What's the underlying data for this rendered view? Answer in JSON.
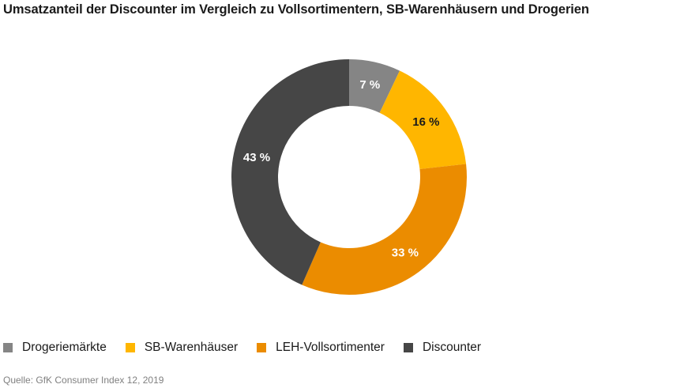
{
  "chart_data": {
    "type": "pie",
    "subtype": "donut",
    "title": "Umsatzanteil der Discounter im Vergleich zu Vollsortimentern, SB-Warenhäusern und Drogerien",
    "categories": [
      "Drogeriemärkte",
      "SB-Warenhäuser",
      "LEH-Vollsortimenter",
      "Discounter"
    ],
    "values": [
      7,
      16,
      33,
      43
    ],
    "value_labels": [
      "7 %",
      "16 %",
      "33 %",
      "43 %"
    ],
    "unit": "%",
    "colors": [
      "#858585",
      "#FFB600",
      "#EB8C00",
      "#464646"
    ],
    "label_colors": [
      "#ffffff",
      "#1a1a1a",
      "#ffffff",
      "#ffffff"
    ],
    "legend_position": "bottom-left",
    "source": "Quelle: GfK Consumer Index 12, 2019"
  }
}
